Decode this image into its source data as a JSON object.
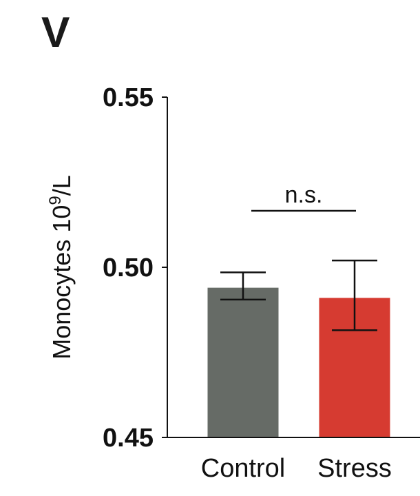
{
  "panel_label": "V",
  "chart_data": {
    "type": "bar",
    "categories": [
      "Control",
      "Stress"
    ],
    "values": [
      0.494,
      0.491
    ],
    "error_upper": [
      0.4985,
      0.502
    ],
    "error_lower": [
      0.4905,
      0.4815
    ],
    "colors": [
      "#666b66",
      "#d63b31"
    ],
    "ylabel": "Monocytes 10⁹/L",
    "ylabel_base": "Monocytes 10",
    "ylabel_sup": "9",
    "ylabel_unit": "/L",
    "ylim": [
      0.45,
      0.55
    ],
    "yticks": [
      0.45,
      0.5,
      0.55
    ],
    "ytick_labels": [
      "0.45",
      "0.50",
      "0.55"
    ],
    "grid": false,
    "annotations": [
      {
        "text": "n.s.",
        "from": "Control",
        "to": "Stress",
        "y": 0.5166
      }
    ]
  }
}
